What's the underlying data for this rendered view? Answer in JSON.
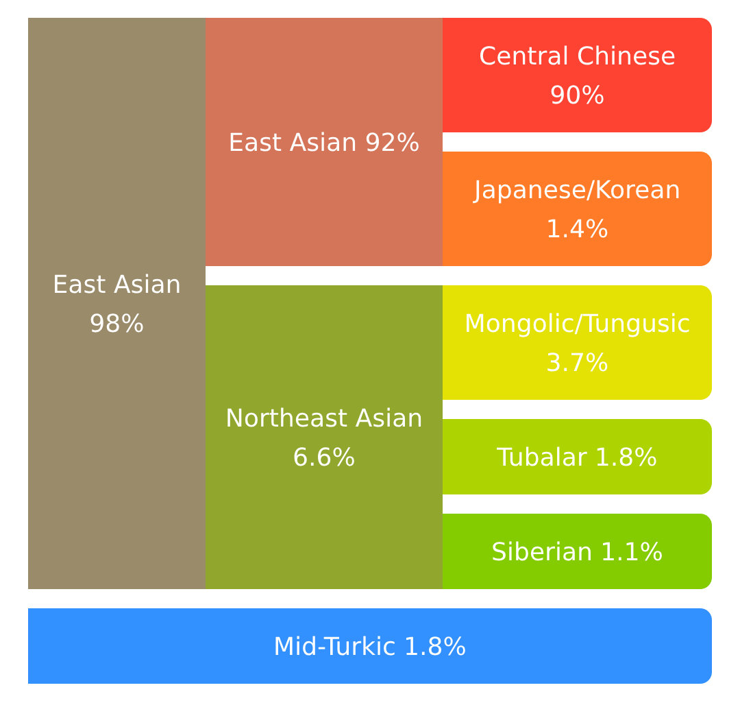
{
  "chart_data": {
    "type": "other",
    "categories": [
      "East Asian",
      "East Asian",
      "Central Chinese",
      "Japanese/Korean",
      "Northeast Asian",
      "Mongolic/Tungusic",
      "Tubalar",
      "Siberian",
      "Mid-Turkic"
    ],
    "series": [
      {
        "values": [
          98,
          null,
          null,
          null,
          null,
          null,
          null,
          null,
          1.8
        ],
        "value_labels": [
          "98%",
          null,
          null,
          null,
          null,
          null,
          null,
          null,
          "1.8%"
        ],
        "colors": [
          "#9a8b6a",
          null,
          null,
          null,
          null,
          null,
          null,
          null,
          "#3390ff"
        ]
      },
      {
        "values": [
          null,
          92,
          null,
          null,
          6.6,
          null,
          null,
          null,
          null
        ],
        "value_labels": [
          null,
          "92%",
          null,
          null,
          "6.6%",
          null,
          null,
          null,
          null
        ],
        "colors": [
          null,
          "#d47559",
          null,
          null,
          "#91a62d",
          null,
          null,
          null,
          null
        ]
      },
      {
        "values": [
          null,
          null,
          90,
          1.4,
          null,
          3.7,
          1.8,
          1.1,
          null
        ],
        "value_labels": [
          null,
          null,
          "90%",
          "1.4%",
          null,
          "3.7%",
          "1.8%",
          "1.1%",
          null
        ],
        "colors": [
          null,
          null,
          "#ff4333",
          "#ff7b27",
          null,
          "#e3e204",
          "#add300",
          "#84cc00",
          null
        ]
      }
    ]
  }
}
